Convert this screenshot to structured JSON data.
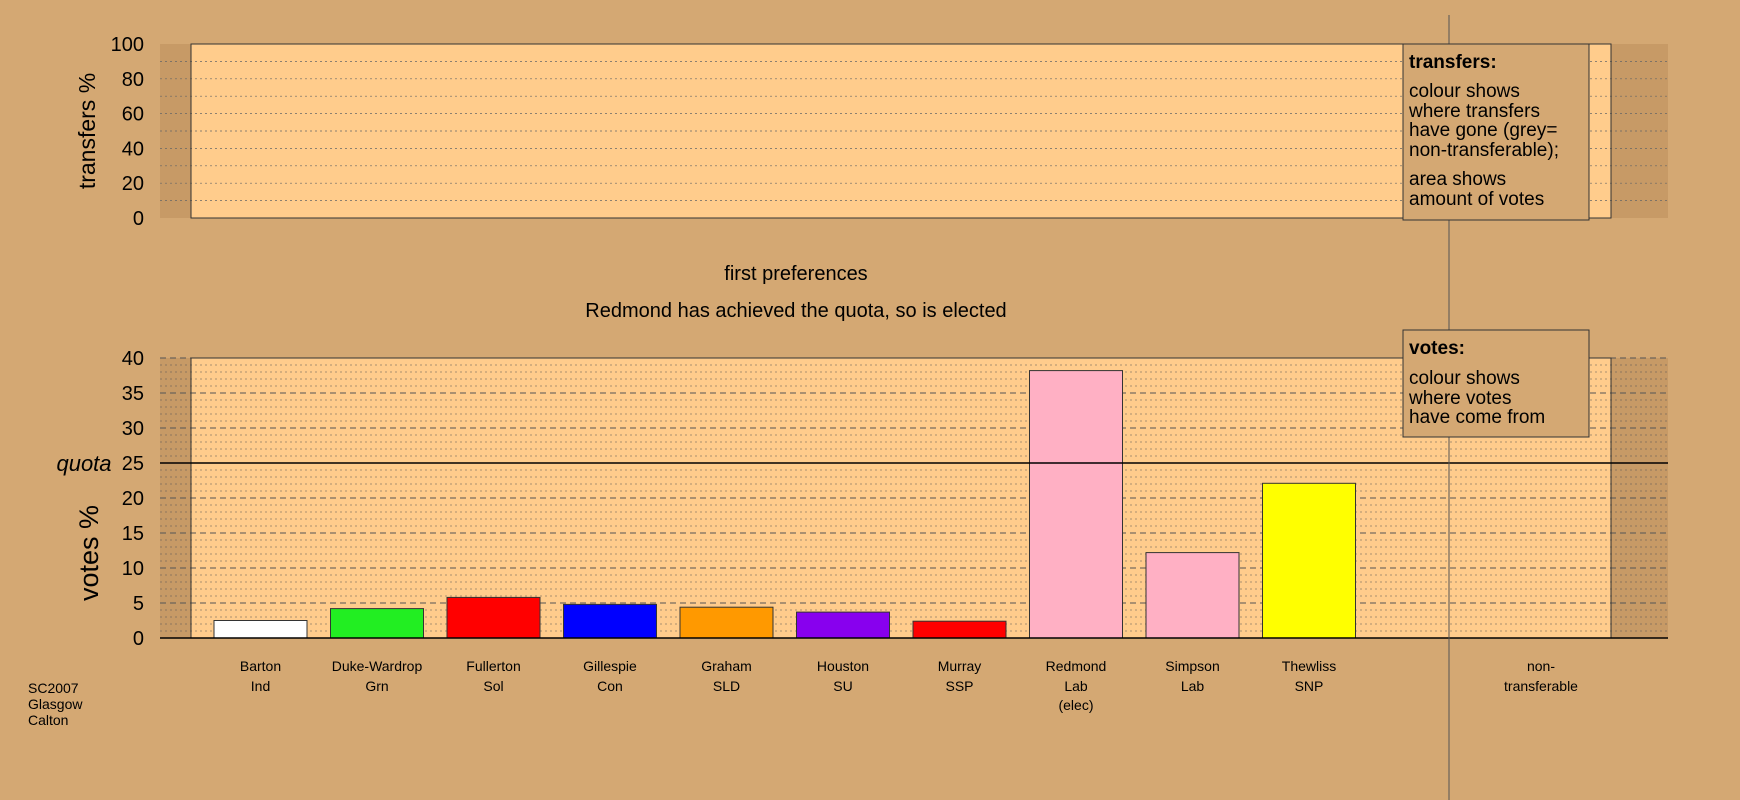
{
  "colors": {
    "background": "#d4a873",
    "plot_fill": "#ffcc8c",
    "outer_band": "#c79a66",
    "grid": "#666666",
    "quota_line": "#000000"
  },
  "transfers_panel": {
    "ylabel": "transfers %",
    "ticks": [
      "0",
      "20",
      "40",
      "60",
      "80",
      "100"
    ],
    "ylim": [
      0,
      100
    ],
    "legend": {
      "title": "transfers:",
      "lines1": [
        "colour shows",
        "where transfers",
        "have gone (grey=",
        "non-transferable);"
      ],
      "lines2": [
        "area shows",
        "amount of votes"
      ]
    }
  },
  "stage_title": "first preferences",
  "stage_subtitle": "Redmond has achieved the quota, so is elected",
  "quota_label": "quota",
  "footer": {
    "lines": [
      "SC2007",
      "Glasgow",
      "Calton"
    ]
  },
  "chart_data": {
    "type": "bar",
    "ylabel": "votes %",
    "ylim": [
      0,
      40
    ],
    "yticks": [
      "0",
      "5",
      "10",
      "15",
      "20",
      "25",
      "30",
      "35",
      "40"
    ],
    "quota": 25,
    "grid": true,
    "categories": [
      {
        "name": "Barton",
        "party": "Ind",
        "note": ""
      },
      {
        "name": "Duke-Wardrop",
        "party": "Grn",
        "note": ""
      },
      {
        "name": "Fullerton",
        "party": "Sol",
        "note": ""
      },
      {
        "name": "Gillespie",
        "party": "Con",
        "note": ""
      },
      {
        "name": "Graham",
        "party": "SLD",
        "note": ""
      },
      {
        "name": "Houston",
        "party": "SU",
        "note": ""
      },
      {
        "name": "Murray",
        "party": "SSP",
        "note": ""
      },
      {
        "name": "Redmond",
        "party": "Lab",
        "note": "(elec)"
      },
      {
        "name": "Simpson",
        "party": "Lab",
        "note": ""
      },
      {
        "name": "Thewliss",
        "party": "SNP",
        "note": ""
      }
    ],
    "values": [
      2.5,
      4.2,
      5.8,
      4.8,
      4.4,
      3.7,
      2.4,
      38.2,
      12.2,
      22.1
    ],
    "bar_colors": [
      "#ffffff",
      "#22ee22",
      "#ff0000",
      "#0000ff",
      "#ff9900",
      "#8800ee",
      "#ff0000",
      "#ffb0c4",
      "#ffb0c4",
      "#ffff00"
    ],
    "nontransferable_label": [
      "non-",
      "transferable"
    ],
    "legend": {
      "title": "votes:",
      "lines": [
        "colour shows",
        "where votes",
        "have come from"
      ]
    }
  }
}
